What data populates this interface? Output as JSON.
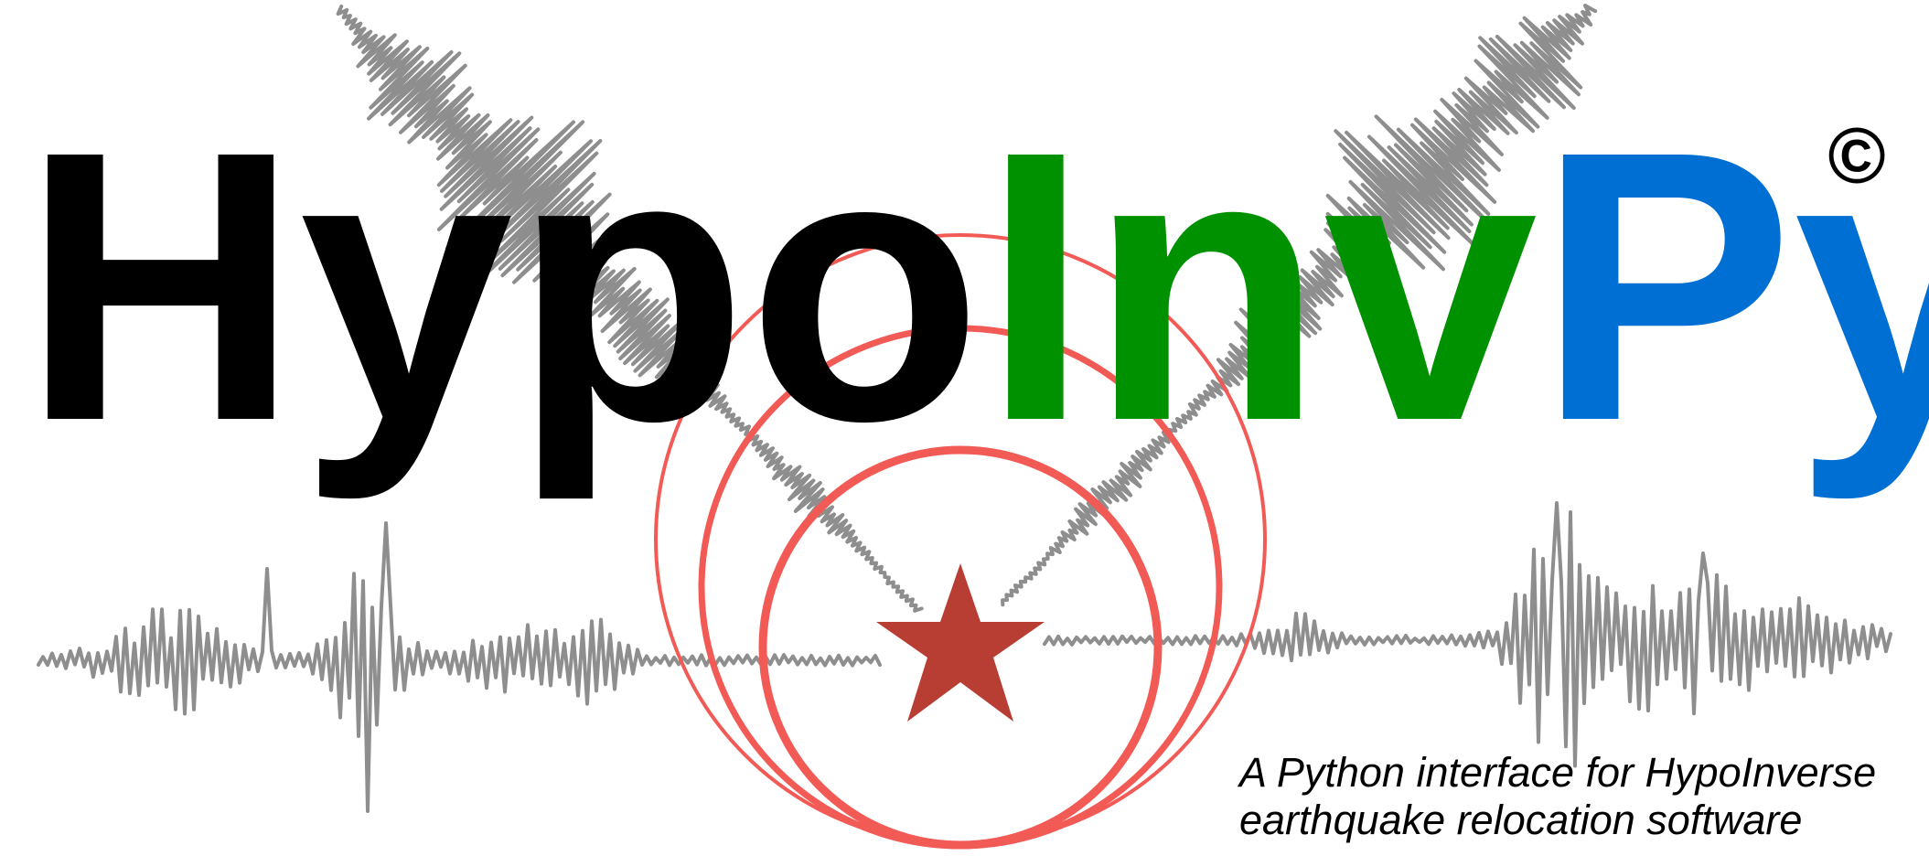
{
  "logo": {
    "title_parts": [
      {
        "text": "Hypo",
        "color": "#000000"
      },
      {
        "text": "Inv",
        "color": "#009100"
      },
      {
        "text": "Py",
        "color": "#006fd3"
      }
    ],
    "copyright_symbol": "©",
    "tagline": [
      "A Python interface for HypoInverse",
      "earthquake relocation software"
    ],
    "icons": {
      "epicenter": "star-icon",
      "wavefronts": "ring-icon",
      "seismograms": "seismogram-trace"
    },
    "colors": {
      "waveform": "#8e8e8e",
      "rings": "#f25a55",
      "star": "#b83d33"
    }
  }
}
